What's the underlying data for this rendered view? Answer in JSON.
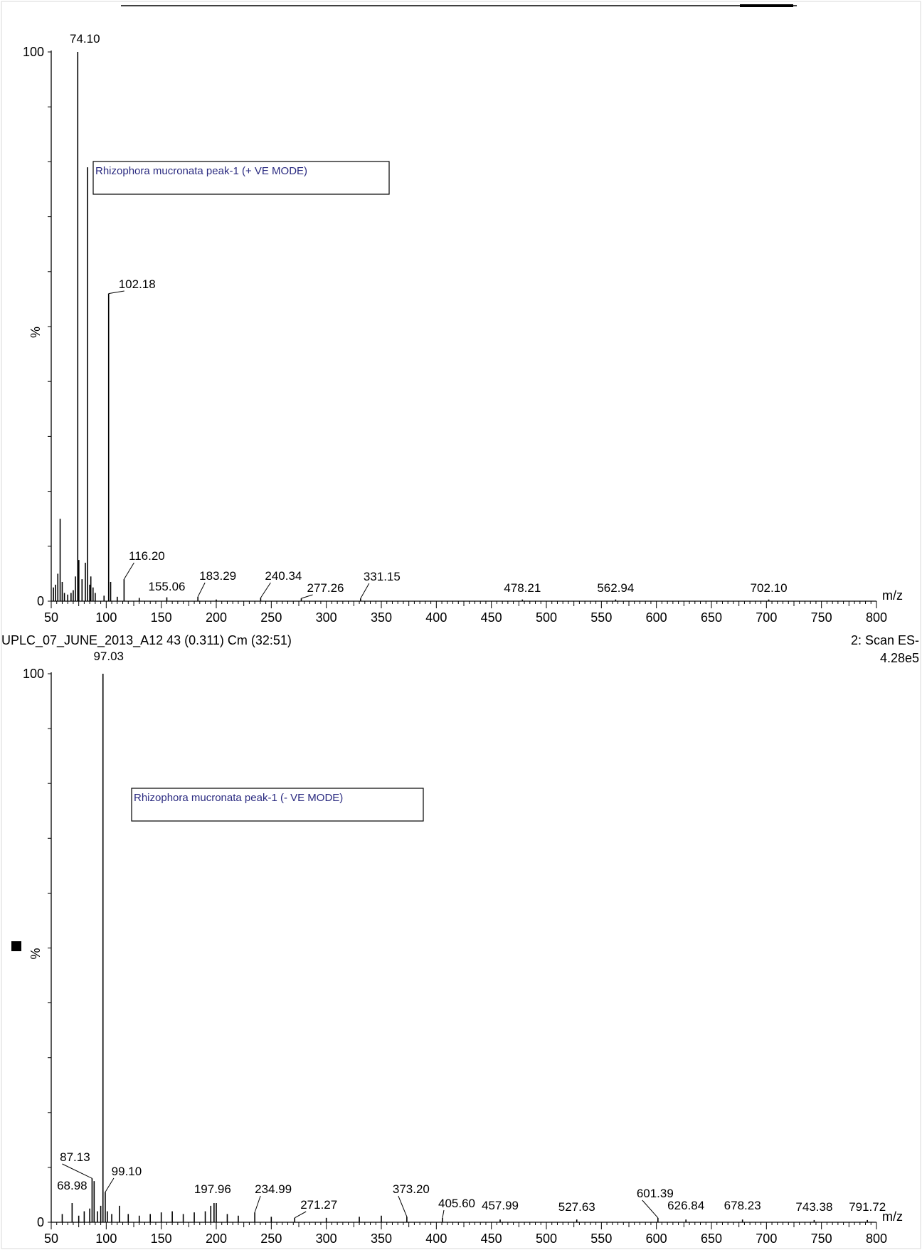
{
  "header": {
    "run_id": "UPLC_07_JUNE_2013_A12 43 (0.311) Cm (32:51)",
    "scan_mode": "2: Scan ES-",
    "intensity": "4.28e5"
  },
  "chart_data": [
    {
      "type": "bar",
      "title": "Rhizophora mucronata peak-1  (+ VE MODE)",
      "xlabel": "m/z",
      "ylabel": "%",
      "xlim": [
        50,
        800
      ],
      "ylim": [
        0,
        100
      ],
      "x_ticks": [
        50,
        100,
        150,
        200,
        250,
        300,
        350,
        400,
        450,
        500,
        550,
        600,
        650,
        700,
        750,
        800
      ],
      "y_ticks": [
        0,
        100
      ],
      "y_tick_labels": [
        "0",
        "100"
      ],
      "peaks": [
        {
          "mz": 52.0,
          "rel": 2.5
        },
        {
          "mz": 54.0,
          "rel": 3.0
        },
        {
          "mz": 56.0,
          "rel": 5.0
        },
        {
          "mz": 58.1,
          "rel": 15.0
        },
        {
          "mz": 60.0,
          "rel": 3.5
        },
        {
          "mz": 62.0,
          "rel": 1.5
        },
        {
          "mz": 65.0,
          "rel": 1.2
        },
        {
          "mz": 68.0,
          "rel": 1.5
        },
        {
          "mz": 70.0,
          "rel": 2.0
        },
        {
          "mz": 72.0,
          "rel": 4.5
        },
        {
          "mz": 74.1,
          "rel": 100.0
        },
        {
          "mz": 75.1,
          "rel": 7.5
        },
        {
          "mz": 78.0,
          "rel": 4.0
        },
        {
          "mz": 81.0,
          "rel": 7.0
        },
        {
          "mz": 83.0,
          "rel": 79.0
        },
        {
          "mz": 85.0,
          "rel": 3.0
        },
        {
          "mz": 86.0,
          "rel": 4.5
        },
        {
          "mz": 88.0,
          "rel": 2.5
        },
        {
          "mz": 90.0,
          "rel": 1.5
        },
        {
          "mz": 98.0,
          "rel": 1.0
        },
        {
          "mz": 102.18,
          "rel": 56.0
        },
        {
          "mz": 104.0,
          "rel": 3.5
        },
        {
          "mz": 110.0,
          "rel": 0.8
        },
        {
          "mz": 116.2,
          "rel": 4.0
        },
        {
          "mz": 130.0,
          "rel": 0.6
        },
        {
          "mz": 155.06,
          "rel": 0.7
        },
        {
          "mz": 183.29,
          "rel": 0.8
        },
        {
          "mz": 200.0,
          "rel": 0.3
        },
        {
          "mz": 240.34,
          "rel": 0.6
        },
        {
          "mz": 277.26,
          "rel": 0.5
        },
        {
          "mz": 331.15,
          "rel": 0.5
        },
        {
          "mz": 478.21,
          "rel": 0.3
        },
        {
          "mz": 562.94,
          "rel": 0.3
        },
        {
          "mz": 702.1,
          "rel": 0.3
        }
      ],
      "peak_labels": [
        {
          "mz": 74.1,
          "text": "74.10"
        },
        {
          "mz": 102.18,
          "text": "102.18"
        },
        {
          "mz": 116.2,
          "text": "116.20"
        },
        {
          "mz": 155.06,
          "text": "155.06"
        },
        {
          "mz": 183.29,
          "text": "183.29"
        },
        {
          "mz": 240.34,
          "text": "240.34"
        },
        {
          "mz": 277.26,
          "text": "277.26"
        },
        {
          "mz": 331.15,
          "text": "331.15"
        },
        {
          "mz": 478.21,
          "text": "478.21"
        },
        {
          "mz": 562.94,
          "text": "562.94"
        },
        {
          "mz": 702.1,
          "text": "702.10"
        }
      ]
    },
    {
      "type": "bar",
      "title": "Rhizophora mucronata peak-1  (- VE MODE)",
      "xlabel": "m/z",
      "ylabel": "%",
      "xlim": [
        50,
        800
      ],
      "ylim": [
        0,
        100
      ],
      "x_ticks": [
        50,
        100,
        150,
        200,
        250,
        300,
        350,
        400,
        450,
        500,
        550,
        600,
        650,
        700,
        750,
        800
      ],
      "y_ticks": [
        0,
        100
      ],
      "y_tick_labels": [
        "0",
        "100"
      ],
      "peaks": [
        {
          "mz": 60.0,
          "rel": 1.5
        },
        {
          "mz": 68.98,
          "rel": 3.5
        },
        {
          "mz": 75.0,
          "rel": 1.2
        },
        {
          "mz": 80.0,
          "rel": 2.0
        },
        {
          "mz": 85.0,
          "rel": 2.5
        },
        {
          "mz": 87.13,
          "rel": 8.0
        },
        {
          "mz": 89.0,
          "rel": 7.5
        },
        {
          "mz": 92.0,
          "rel": 2.0
        },
        {
          "mz": 95.0,
          "rel": 3.0
        },
        {
          "mz": 97.03,
          "rel": 100.0
        },
        {
          "mz": 99.1,
          "rel": 5.5
        },
        {
          "mz": 101.0,
          "rel": 2.0
        },
        {
          "mz": 105.0,
          "rel": 1.5
        },
        {
          "mz": 112.0,
          "rel": 3.0
        },
        {
          "mz": 120.0,
          "rel": 1.5
        },
        {
          "mz": 130.0,
          "rel": 1.2
        },
        {
          "mz": 140.0,
          "rel": 1.5
        },
        {
          "mz": 150.0,
          "rel": 1.8
        },
        {
          "mz": 160.0,
          "rel": 2.0
        },
        {
          "mz": 170.0,
          "rel": 1.5
        },
        {
          "mz": 180.0,
          "rel": 1.8
        },
        {
          "mz": 190.0,
          "rel": 2.0
        },
        {
          "mz": 195.0,
          "rel": 3.0
        },
        {
          "mz": 197.96,
          "rel": 3.5
        },
        {
          "mz": 200.0,
          "rel": 3.5
        },
        {
          "mz": 210.0,
          "rel": 1.5
        },
        {
          "mz": 220.0,
          "rel": 1.2
        },
        {
          "mz": 234.99,
          "rel": 1.8
        },
        {
          "mz": 250.0,
          "rel": 1.0
        },
        {
          "mz": 271.27,
          "rel": 0.8
        },
        {
          "mz": 300.0,
          "rel": 0.8
        },
        {
          "mz": 330.0,
          "rel": 1.0
        },
        {
          "mz": 350.0,
          "rel": 1.2
        },
        {
          "mz": 373.2,
          "rel": 1.0
        },
        {
          "mz": 405.6,
          "rel": 0.8
        },
        {
          "mz": 457.99,
          "rel": 0.5
        },
        {
          "mz": 527.63,
          "rel": 0.5
        },
        {
          "mz": 601.39,
          "rel": 0.8
        },
        {
          "mz": 626.84,
          "rel": 0.5
        },
        {
          "mz": 678.23,
          "rel": 0.5
        },
        {
          "mz": 743.38,
          "rel": 0.4
        },
        {
          "mz": 791.72,
          "rel": 0.4
        }
      ],
      "peak_labels": [
        {
          "mz": 97.03,
          "text": "97.03"
        },
        {
          "mz": 87.13,
          "text": "87.13"
        },
        {
          "mz": 68.98,
          "text": "68.98"
        },
        {
          "mz": 99.1,
          "text": "99.10"
        },
        {
          "mz": 197.96,
          "text": "197.96"
        },
        {
          "mz": 234.99,
          "text": "234.99"
        },
        {
          "mz": 271.27,
          "text": "271.27"
        },
        {
          "mz": 373.2,
          "text": "373.20"
        },
        {
          "mz": 405.6,
          "text": "405.60"
        },
        {
          "mz": 457.99,
          "text": "457.99"
        },
        {
          "mz": 527.63,
          "text": "527.63"
        },
        {
          "mz": 601.39,
          "text": "601.39"
        },
        {
          "mz": 626.84,
          "text": "626.84"
        },
        {
          "mz": 678.23,
          "text": "678.23"
        },
        {
          "mz": 743.38,
          "text": "743.38"
        },
        {
          "mz": 791.72,
          "text": "791.72"
        }
      ]
    }
  ]
}
